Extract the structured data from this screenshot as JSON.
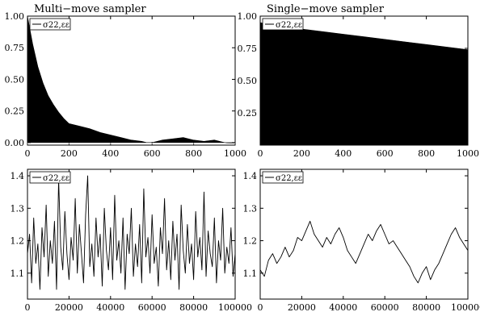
{
  "chart_data": [
    {
      "id": "acf_multi",
      "type": "area",
      "title": "Multi−move sampler",
      "legend": "σ22,εε",
      "legend_position": "top-left",
      "xlim": [
        0,
        1000
      ],
      "ylim": [
        -0.02,
        1.0
      ],
      "x_ticks": [
        0,
        200,
        400,
        600,
        800,
        1000
      ],
      "y_ticks": [
        0.0,
        0.25,
        0.5,
        0.75,
        1.0
      ],
      "y_tick_labels": [
        "0.00",
        "0.25",
        "0.50",
        "0.75",
        "1.00"
      ],
      "x": [
        0,
        25,
        50,
        75,
        100,
        125,
        150,
        175,
        200,
        250,
        300,
        350,
        400,
        450,
        500,
        550,
        575,
        600,
        650,
        700,
        750,
        800,
        850,
        900,
        950,
        1000
      ],
      "values": [
        1.0,
        0.78,
        0.6,
        0.47,
        0.37,
        0.3,
        0.24,
        0.19,
        0.15,
        0.13,
        0.11,
        0.08,
        0.06,
        0.04,
        0.02,
        0.01,
        0.0,
        0.0,
        0.02,
        0.03,
        0.04,
        0.02,
        0.01,
        0.02,
        0.0,
        -0.01
      ]
    },
    {
      "id": "acf_single",
      "type": "area",
      "title": "Single−move sampler",
      "legend": "σ22,εε",
      "legend_position": "top-left",
      "xlim": [
        0,
        1000
      ],
      "ylim": [
        0.0,
        1.0
      ],
      "x_ticks": [
        0,
        200,
        400,
        600,
        800,
        1000
      ],
      "y_ticks": [
        0.25,
        0.5,
        0.75,
        1.0
      ],
      "y_tick_labels": [
        "0.25",
        "0.50",
        "0.75",
        "1.00"
      ],
      "x": [
        0,
        50,
        100,
        200,
        300,
        400,
        500,
        600,
        700,
        800,
        900,
        1000
      ],
      "values": [
        0.95,
        0.93,
        0.92,
        0.9,
        0.88,
        0.86,
        0.84,
        0.82,
        0.8,
        0.78,
        0.76,
        0.74
      ]
    },
    {
      "id": "trace_multi",
      "type": "line",
      "legend": "σ22,εε",
      "legend_position": "top-left",
      "xlim": [
        0,
        100000
      ],
      "ylim": [
        1.02,
        1.42
      ],
      "x_ticks": [
        0,
        20000,
        40000,
        60000,
        80000,
        100000
      ],
      "y_ticks": [
        1.1,
        1.2,
        1.3,
        1.4
      ],
      "y_tick_labels": [
        "1.1",
        "1.2",
        "1.3",
        "1.4"
      ],
      "x_start": 0,
      "x_step": 1000,
      "values": [
        1.16,
        1.22,
        1.07,
        1.27,
        1.13,
        1.19,
        1.05,
        1.24,
        1.15,
        1.31,
        1.09,
        1.2,
        1.13,
        1.26,
        1.05,
        1.39,
        1.18,
        1.11,
        1.29,
        1.16,
        1.08,
        1.21,
        1.14,
        1.33,
        1.1,
        1.25,
        1.16,
        1.07,
        1.28,
        1.4,
        1.12,
        1.19,
        1.09,
        1.27,
        1.15,
        1.22,
        1.06,
        1.3,
        1.17,
        1.11,
        1.24,
        1.08,
        1.34,
        1.14,
        1.2,
        1.1,
        1.27,
        1.05,
        1.22,
        1.16,
        1.3,
        1.09,
        1.19,
        1.12,
        1.25,
        1.07,
        1.36,
        1.15,
        1.21,
        1.1,
        1.28,
        1.13,
        1.18,
        1.06,
        1.24,
        1.16,
        1.33,
        1.11,
        1.2,
        1.08,
        1.26,
        1.14,
        1.22,
        1.05,
        1.31,
        1.17,
        1.1,
        1.25,
        1.13,
        1.19,
        1.08,
        1.29,
        1.15,
        1.21,
        1.11,
        1.35,
        1.09,
        1.23,
        1.16,
        1.12,
        1.27,
        1.07,
        1.2,
        1.14,
        1.3,
        1.1,
        1.18,
        1.13,
        1.24,
        1.09,
        1.16
      ]
    },
    {
      "id": "trace_single",
      "type": "line",
      "legend": "σ22,εε",
      "legend_position": "top-left",
      "xlim": [
        0,
        100000
      ],
      "ylim": [
        1.02,
        1.42
      ],
      "x_ticks": [
        0,
        20000,
        40000,
        60000,
        80000,
        100000
      ],
      "y_ticks": [
        1.1,
        1.2,
        1.3,
        1.4
      ],
      "y_tick_labels": [
        "1.1",
        "1.2",
        "1.3",
        "1.4"
      ],
      "x_start": 0,
      "x_step": 2000,
      "values": [
        1.11,
        1.09,
        1.14,
        1.16,
        1.13,
        1.15,
        1.18,
        1.15,
        1.17,
        1.21,
        1.2,
        1.23,
        1.26,
        1.22,
        1.2,
        1.18,
        1.21,
        1.19,
        1.22,
        1.24,
        1.21,
        1.17,
        1.15,
        1.13,
        1.16,
        1.19,
        1.22,
        1.2,
        1.23,
        1.25,
        1.22,
        1.19,
        1.2,
        1.18,
        1.16,
        1.14,
        1.12,
        1.09,
        1.07,
        1.1,
        1.12,
        1.08,
        1.11,
        1.13,
        1.16,
        1.19,
        1.22,
        1.24,
        1.21,
        1.19,
        1.17
      ]
    }
  ]
}
